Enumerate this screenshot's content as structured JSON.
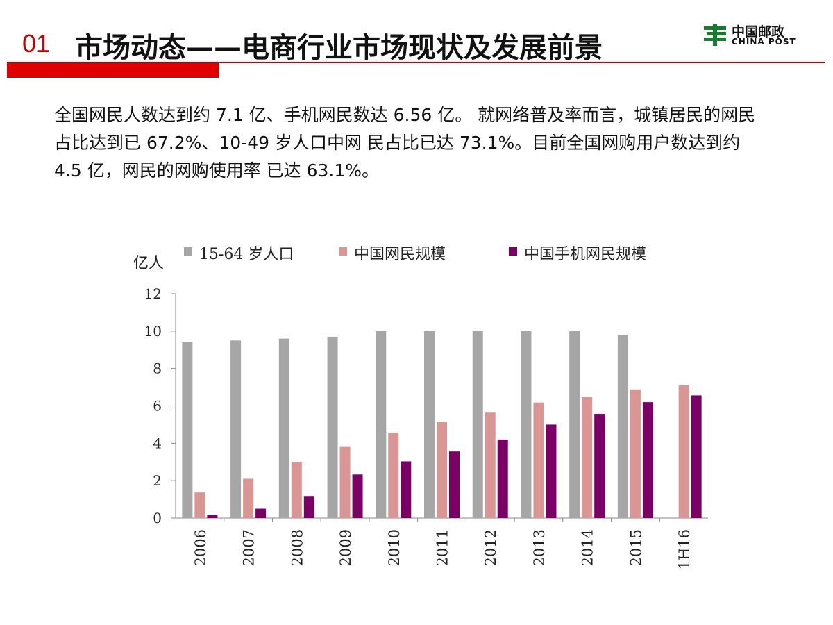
{
  "header": {
    "number": "01",
    "title": "市场动态——电商行业市场现状及发展前景",
    "logo_cn": "中国邮政",
    "logo_en": "CHINA POST"
  },
  "paragraph": "全国网民人数达到约 7.1 亿、手机网民数达 6.56 亿。 就网络普及率而言，城镇居民的网民占比达到已 67.2%、10-49 岁人口中网 民占比已达 73.1%。目前全国网购用户数达到约 4.5 亿，网民的网购使用率 已达 63.1%。",
  "chart_data": {
    "type": "bar",
    "y_label": "亿人",
    "categories": [
      "2006",
      "2007",
      "2008",
      "2009",
      "2010",
      "2011",
      "2012",
      "2013",
      "2014",
      "2015",
      "1H16"
    ],
    "series": [
      {
        "name": "15-64 岁人口",
        "color": "#a6a6a6",
        "values": [
          9.4,
          9.5,
          9.6,
          9.7,
          10.0,
          10.0,
          10.0,
          10.0,
          10.0,
          9.8,
          null
        ]
      },
      {
        "name": "中国网民规模",
        "color": "#d99694",
        "values": [
          1.37,
          2.1,
          2.98,
          3.84,
          4.57,
          5.13,
          5.64,
          6.18,
          6.49,
          6.88,
          7.1
        ]
      },
      {
        "name": "中国手机网民规模",
        "color": "#7b0066",
        "values": [
          0.17,
          0.5,
          1.18,
          2.33,
          3.03,
          3.56,
          4.2,
          5.0,
          5.57,
          6.2,
          6.56
        ]
      }
    ],
    "ylim": [
      0,
      12
    ],
    "yticks": [
      0,
      2,
      4,
      6,
      8,
      10,
      12
    ],
    "grid": false,
    "legend": "top"
  }
}
